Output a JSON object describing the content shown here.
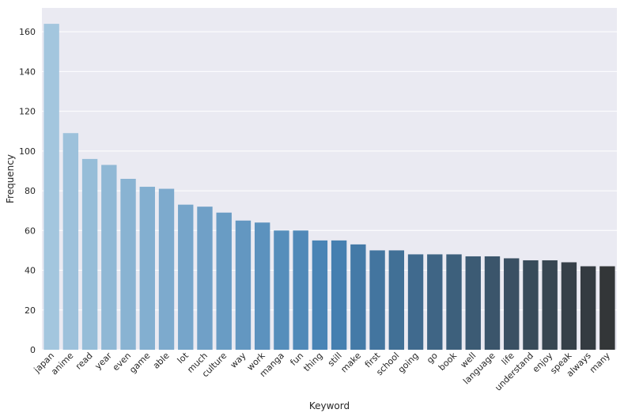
{
  "chart_data": {
    "type": "bar",
    "xlabel": "Keyword",
    "ylabel": "Frequency",
    "ylim": [
      0,
      172
    ],
    "yticks": [
      0,
      20,
      40,
      60,
      80,
      100,
      120,
      140,
      160
    ],
    "grid": true,
    "categories": [
      "japan",
      "anime",
      "read",
      "year",
      "even",
      "game",
      "able",
      "lot",
      "much",
      "culture",
      "way",
      "work",
      "manga",
      "fun",
      "thing",
      "still",
      "make",
      "first",
      "school",
      "going",
      "go",
      "book",
      "well",
      "language",
      "life",
      "understand",
      "enjoy",
      "speak",
      "always",
      "many"
    ],
    "values": [
      164,
      109,
      96,
      93,
      86,
      82,
      81,
      73,
      72,
      69,
      65,
      64,
      60,
      60,
      55,
      55,
      53,
      50,
      50,
      48,
      48,
      48,
      47,
      47,
      46,
      45,
      45,
      44,
      42,
      42
    ],
    "palette": "Blues_d (light blue to dark slate)",
    "colors": {
      "background": "#eaeaf2",
      "grid": "#ffffff",
      "bar_start": "#a3c6de",
      "bar_end": "#333638"
    }
  }
}
